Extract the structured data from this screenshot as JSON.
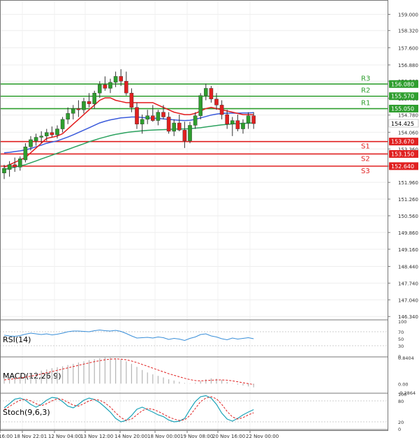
{
  "chart_data": {
    "type": "candlestick",
    "title": "",
    "price_axis": {
      "ylim": [
        146.2,
        159.6
      ],
      "ticks": [
        "159.000",
        "158.320",
        "157.600",
        "156.880",
        "156.200",
        "155.480",
        "154.780",
        "154.060",
        "153.360",
        "152.640",
        "151.960",
        "151.260",
        "150.560",
        "149.860",
        "149.160",
        "148.440",
        "147.740",
        "147.040",
        "146.340"
      ]
    },
    "x_ticks": [
      "16:00",
      "18 Nov 22:01",
      "12 Nov 04:00",
      "13 Nov 12:00",
      "14 Nov 20:00",
      "18 Nov 00:00",
      "19 Nov 08:00",
      "20 Nov 16:00",
      "22 Nov 00:00"
    ],
    "current_price": "154.425",
    "colors": {
      "bull": "#2e9e2e",
      "bear": "#e02020",
      "ma_fast": "#e31a1c",
      "ma_mid": "#3b5bdb",
      "ma_slow": "#2ca25f",
      "support": "#e02020",
      "resistance": "#2e9e2e"
    },
    "levels": [
      {
        "name": "R3",
        "value": 156.08,
        "label": "156.080",
        "kind": "resistance"
      },
      {
        "name": "R2",
        "value": 155.57,
        "label": "155.570",
        "kind": "resistance"
      },
      {
        "name": "R1",
        "value": 155.05,
        "label": "155.050",
        "kind": "resistance"
      },
      {
        "name": "S1",
        "value": 153.67,
        "label": "153.670",
        "kind": "support"
      },
      {
        "name": "S2",
        "value": 153.15,
        "label": "153.150",
        "kind": "support"
      },
      {
        "name": "S3",
        "value": 152.64,
        "label": "152.640",
        "kind": "support"
      }
    ],
    "candles": [
      {
        "o": 152.35,
        "h": 152.7,
        "l": 152.1,
        "c": 152.55
      },
      {
        "o": 152.5,
        "h": 152.85,
        "l": 152.2,
        "c": 152.7
      },
      {
        "o": 152.7,
        "h": 153.0,
        "l": 152.4,
        "c": 152.6
      },
      {
        "o": 152.6,
        "h": 153.05,
        "l": 152.45,
        "c": 152.95
      },
      {
        "o": 152.9,
        "h": 153.6,
        "l": 152.8,
        "c": 153.45
      },
      {
        "o": 153.45,
        "h": 153.9,
        "l": 153.3,
        "c": 153.75
      },
      {
        "o": 153.7,
        "h": 154.0,
        "l": 153.5,
        "c": 153.85
      },
      {
        "o": 153.85,
        "h": 154.1,
        "l": 153.6,
        "c": 153.9
      },
      {
        "o": 153.9,
        "h": 154.2,
        "l": 153.7,
        "c": 154.05
      },
      {
        "o": 154.05,
        "h": 154.3,
        "l": 153.85,
        "c": 153.95
      },
      {
        "o": 153.95,
        "h": 154.35,
        "l": 153.8,
        "c": 154.2
      },
      {
        "o": 154.2,
        "h": 154.7,
        "l": 154.05,
        "c": 154.6
      },
      {
        "o": 154.6,
        "h": 155.1,
        "l": 154.4,
        "c": 154.85
      },
      {
        "o": 154.85,
        "h": 155.2,
        "l": 154.6,
        "c": 155.05
      },
      {
        "o": 155.05,
        "h": 155.4,
        "l": 154.7,
        "c": 155.0
      },
      {
        "o": 155.0,
        "h": 155.5,
        "l": 154.85,
        "c": 155.35
      },
      {
        "o": 155.35,
        "h": 155.7,
        "l": 155.1,
        "c": 155.25
      },
      {
        "o": 155.25,
        "h": 155.8,
        "l": 155.05,
        "c": 155.7
      },
      {
        "o": 155.7,
        "h": 156.2,
        "l": 155.5,
        "c": 156.05
      },
      {
        "o": 156.05,
        "h": 156.4,
        "l": 155.8,
        "c": 155.9
      },
      {
        "o": 155.9,
        "h": 156.3,
        "l": 155.7,
        "c": 156.15
      },
      {
        "o": 156.15,
        "h": 156.6,
        "l": 155.95,
        "c": 156.4
      },
      {
        "o": 156.4,
        "h": 156.7,
        "l": 156.0,
        "c": 156.2
      },
      {
        "o": 156.2,
        "h": 156.6,
        "l": 155.6,
        "c": 155.7
      },
      {
        "o": 155.7,
        "h": 155.9,
        "l": 154.9,
        "c": 155.1
      },
      {
        "o": 155.1,
        "h": 155.3,
        "l": 154.2,
        "c": 154.4
      },
      {
        "o": 154.4,
        "h": 154.8,
        "l": 154.0,
        "c": 154.6
      },
      {
        "o": 154.6,
        "h": 155.0,
        "l": 154.4,
        "c": 154.75
      },
      {
        "o": 154.75,
        "h": 155.2,
        "l": 154.5,
        "c": 154.55
      },
      {
        "o": 154.55,
        "h": 155.0,
        "l": 154.35,
        "c": 154.9
      },
      {
        "o": 154.9,
        "h": 155.2,
        "l": 154.6,
        "c": 154.7
      },
      {
        "o": 154.7,
        "h": 154.9,
        "l": 154.0,
        "c": 154.1
      },
      {
        "o": 154.1,
        "h": 154.6,
        "l": 153.9,
        "c": 154.45
      },
      {
        "o": 154.45,
        "h": 154.8,
        "l": 154.1,
        "c": 154.15
      },
      {
        "o": 154.15,
        "h": 154.5,
        "l": 153.4,
        "c": 153.7
      },
      {
        "o": 153.7,
        "h": 154.5,
        "l": 153.6,
        "c": 154.35
      },
      {
        "o": 154.35,
        "h": 154.9,
        "l": 154.2,
        "c": 154.75
      },
      {
        "o": 154.75,
        "h": 155.7,
        "l": 154.6,
        "c": 155.6
      },
      {
        "o": 155.6,
        "h": 156.1,
        "l": 155.4,
        "c": 155.9
      },
      {
        "o": 155.9,
        "h": 156.0,
        "l": 155.3,
        "c": 155.45
      },
      {
        "o": 155.45,
        "h": 155.7,
        "l": 155.0,
        "c": 155.2
      },
      {
        "o": 155.2,
        "h": 155.4,
        "l": 154.6,
        "c": 154.8
      },
      {
        "o": 154.8,
        "h": 155.0,
        "l": 154.2,
        "c": 154.4
      },
      {
        "o": 154.4,
        "h": 154.7,
        "l": 153.9,
        "c": 154.55
      },
      {
        "o": 154.55,
        "h": 154.8,
        "l": 154.1,
        "c": 154.2
      },
      {
        "o": 154.2,
        "h": 154.6,
        "l": 154.0,
        "c": 154.45
      },
      {
        "o": 154.45,
        "h": 154.9,
        "l": 154.2,
        "c": 154.75
      },
      {
        "o": 154.75,
        "h": 154.9,
        "l": 154.2,
        "c": 154.42
      }
    ],
    "ma_fast": [
      152.6,
      152.7,
      152.8,
      152.9,
      153.0,
      153.2,
      153.4,
      153.6,
      153.8,
      153.85,
      153.9,
      154.0,
      154.2,
      154.4,
      154.6,
      154.8,
      155.0,
      155.2,
      155.4,
      155.5,
      155.5,
      155.4,
      155.35,
      155.3,
      155.3,
      155.3,
      155.3,
      155.3,
      155.3,
      155.2,
      155.1,
      155.0,
      154.9,
      154.85,
      154.8,
      154.8,
      154.85,
      154.95,
      155.05,
      155.1,
      155.05,
      155.0,
      154.95,
      154.9,
      154.85,
      154.8,
      154.8,
      154.8
    ],
    "ma_mid": [
      153.2,
      153.22,
      153.25,
      153.28,
      153.32,
      153.38,
      153.45,
      153.52,
      153.6,
      153.65,
      153.7,
      153.78,
      153.86,
      153.95,
      154.05,
      154.15,
      154.25,
      154.35,
      154.45,
      154.52,
      154.58,
      154.62,
      154.66,
      154.68,
      154.7,
      154.7,
      154.68,
      154.66,
      154.65,
      154.64,
      154.62,
      154.6,
      154.58,
      154.56,
      154.55,
      154.56,
      154.6,
      154.66,
      154.72,
      154.78,
      154.82,
      154.85,
      154.86,
      154.86,
      154.86,
      154.87,
      154.87,
      154.88
    ],
    "ma_slow": [
      152.5,
      152.55,
      152.6,
      152.65,
      152.7,
      152.78,
      152.86,
      152.94,
      153.02,
      153.1,
      153.18,
      153.26,
      153.34,
      153.42,
      153.5,
      153.58,
      153.66,
      153.73,
      153.8,
      153.86,
      153.92,
      153.97,
      154.01,
      154.05,
      154.08,
      154.1,
      154.12,
      154.14,
      154.15,
      154.16,
      154.17,
      154.18,
      154.19,
      154.2,
      154.2,
      154.21,
      154.23,
      154.25,
      154.28,
      154.31,
      154.34,
      154.37,
      154.39,
      154.41,
      154.42,
      154.43,
      154.44,
      154.45
    ],
    "indicators": [
      {
        "name": "RSI(14)",
        "ylim": [
          0,
          100
        ],
        "ticks": [
          "100",
          "70",
          "50",
          "30",
          "0"
        ]
      },
      {
        "name": "MACD(12,26,9)",
        "ylim": [
          -0.2864,
          0.8404
        ],
        "ticks": [
          "0.8404",
          "0.00",
          "-0.2864"
        ]
      },
      {
        "name": "Stoch(9,6,3)",
        "ylim": [
          0,
          100
        ],
        "ticks": [
          "100",
          "80",
          "20",
          "0"
        ]
      }
    ],
    "rsi": [
      60,
      58,
      57,
      59,
      63,
      66,
      64,
      62,
      64,
      61,
      63,
      66,
      70,
      72,
      72,
      71,
      70,
      73,
      75,
      73,
      72,
      74,
      71,
      65,
      58,
      52,
      53,
      54,
      52,
      55,
      53,
      48,
      51,
      49,
      45,
      51,
      55,
      62,
      64,
      58,
      55,
      50,
      47,
      52,
      49,
      51,
      53,
      50
    ],
    "macd_hist": [
      0.2,
      0.22,
      0.24,
      0.26,
      0.3,
      0.34,
      0.38,
      0.42,
      0.46,
      0.5,
      0.53,
      0.56,
      0.6,
      0.64,
      0.68,
      0.72,
      0.76,
      0.79,
      0.82,
      0.84,
      0.84,
      0.82,
      0.78,
      0.72,
      0.64,
      0.54,
      0.44,
      0.36,
      0.3,
      0.25,
      0.2,
      0.14,
      0.1,
      0.06,
      0.02,
      0.01,
      0.03,
      0.08,
      0.14,
      0.17,
      0.16,
      0.12,
      0.06,
      0.01,
      -0.03,
      -0.06,
      -0.09,
      -0.12
    ],
    "macd_signal": [
      0.12,
      0.14,
      0.16,
      0.18,
      0.21,
      0.24,
      0.27,
      0.31,
      0.35,
      0.39,
      0.43,
      0.47,
      0.51,
      0.55,
      0.59,
      0.63,
      0.67,
      0.71,
      0.74,
      0.77,
      0.79,
      0.8,
      0.79,
      0.77,
      0.73,
      0.68,
      0.62,
      0.56,
      0.5,
      0.44,
      0.38,
      0.32,
      0.27,
      0.22,
      0.17,
      0.13,
      0.1,
      0.09,
      0.1,
      0.11,
      0.12,
      0.12,
      0.11,
      0.09,
      0.06,
      0.03,
      0.0,
      -0.03
    ],
    "stoch_k": [
      60,
      72,
      85,
      88,
      82,
      70,
      62,
      70,
      82,
      90,
      88,
      78,
      65,
      60,
      70,
      82,
      88,
      84,
      75,
      62,
      48,
      30,
      20,
      24,
      38,
      56,
      62,
      55,
      48,
      40,
      35,
      25,
      20,
      22,
      30,
      55,
      78,
      92,
      95,
      88,
      70,
      45,
      28,
      22,
      30,
      40,
      48,
      55
    ],
    "stoch_d": [
      55,
      64,
      74,
      82,
      85,
      80,
      72,
      66,
      72,
      80,
      86,
      84,
      76,
      68,
      65,
      72,
      80,
      84,
      82,
      74,
      62,
      46,
      32,
      24,
      28,
      40,
      52,
      58,
      56,
      50,
      42,
      34,
      28,
      24,
      26,
      38,
      58,
      78,
      88,
      92,
      86,
      70,
      50,
      34,
      28,
      32,
      40,
      46
    ]
  }
}
